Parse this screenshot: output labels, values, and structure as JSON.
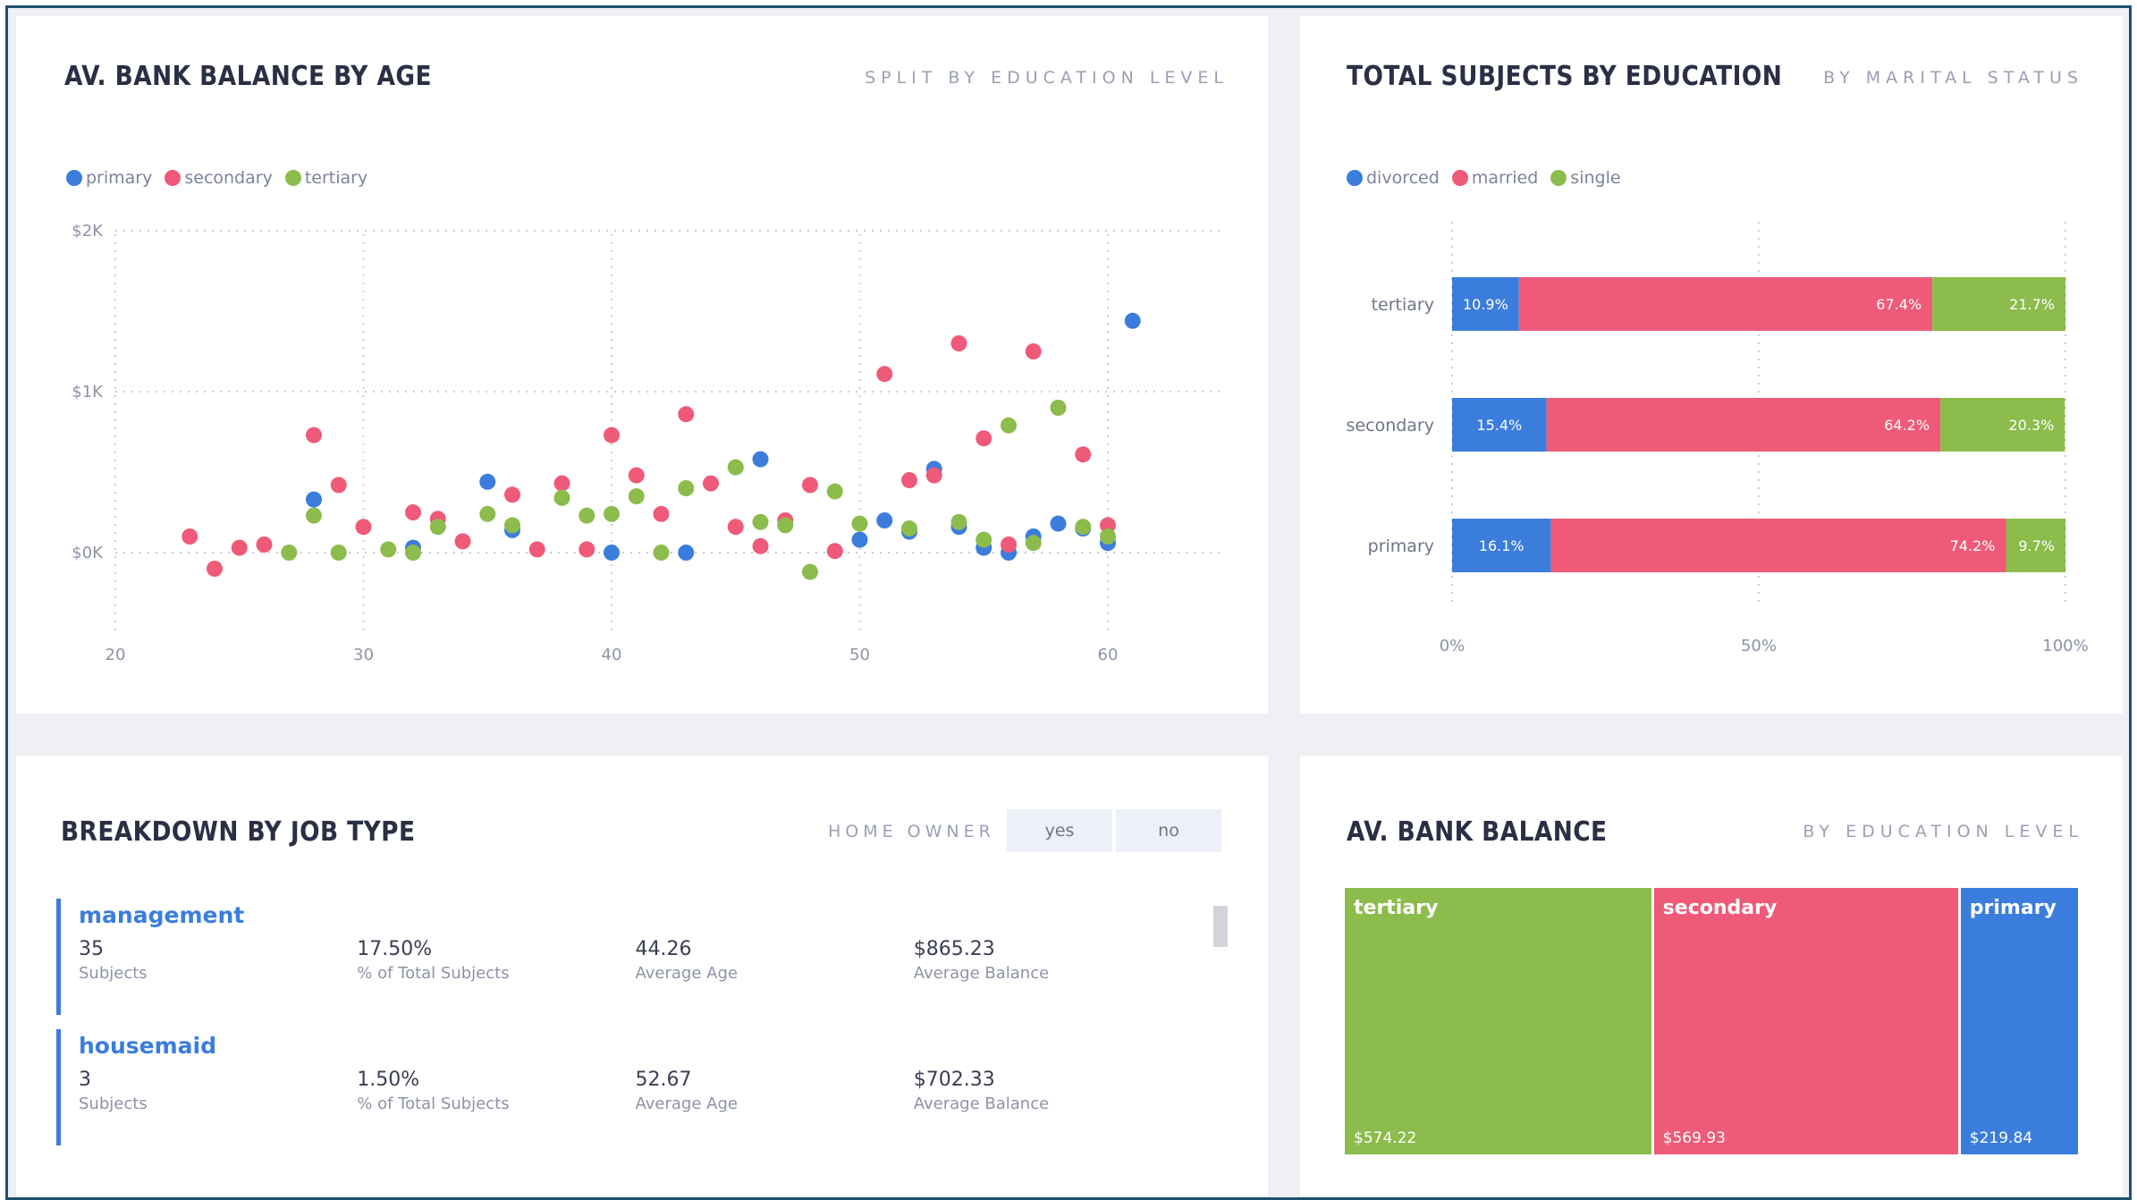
{
  "colors": {
    "primary": "#3b7ddd",
    "secondary": "#ef5a78",
    "tertiary": "#8cbc4c",
    "divorced": "#3b7ddd",
    "married": "#ef5a78",
    "single": "#8cbc4c",
    "grid": "#c9ccd4",
    "axis_text": "#8d93a6"
  },
  "panels": {
    "scatter": {
      "title": "AV. BANK BALANCE BY AGE",
      "subtitle": "SPLIT BY EDUCATION LEVEL"
    },
    "stacked": {
      "title": "TOTAL SUBJECTS BY EDUCATION",
      "subtitle": "BY MARITAL STATUS"
    },
    "jobs": {
      "title": "BREAKDOWN BY JOB TYPE",
      "filter_label": "HOME OWNER",
      "filter_yes": "yes",
      "filter_no": "no"
    },
    "treemap": {
      "title": "AV. BANK BALANCE",
      "subtitle": "BY EDUCATION LEVEL"
    }
  },
  "jobs": [
    {
      "name": "management",
      "subjects": "35",
      "subjects_label": "Subjects",
      "pct": "17.50%",
      "pct_label": "% of Total Subjects",
      "age": "44.26",
      "age_label": "Average Age",
      "balance": "$865.23",
      "balance_label": "Average Balance"
    },
    {
      "name": "housemaid",
      "subjects": "3",
      "subjects_label": "Subjects",
      "pct": "1.50%",
      "pct_label": "% of Total Subjects",
      "age": "52.67",
      "age_label": "Average Age",
      "balance": "$702.33",
      "balance_label": "Average Balance"
    }
  ],
  "chart_data": [
    {
      "type": "scatter",
      "title": "AV. BANK BALANCE BY AGE",
      "subtitle": "SPLIT BY EDUCATION LEVEL",
      "xlabel": "",
      "ylabel": "",
      "xlim": [
        20,
        65
      ],
      "ylim": [
        -400,
        2000
      ],
      "x_ticks": [
        20,
        30,
        40,
        50,
        60
      ],
      "y_ticks": [
        0,
        1000,
        2000
      ],
      "y_tick_labels": [
        "$0K",
        "$1K",
        "$2K"
      ],
      "legend": [
        "primary",
        "secondary",
        "tertiary"
      ],
      "series": [
        {
          "name": "primary",
          "points": [
            [
              28,
              330
            ],
            [
              32,
              30
            ],
            [
              35,
              440
            ],
            [
              36,
              140
            ],
            [
              40,
              0
            ],
            [
              43,
              0
            ],
            [
              46,
              580
            ],
            [
              50,
              80
            ],
            [
              51,
              200
            ],
            [
              52,
              130
            ],
            [
              53,
              520
            ],
            [
              54,
              160
            ],
            [
              55,
              30
            ],
            [
              56,
              0
            ],
            [
              57,
              100
            ],
            [
              58,
              180
            ],
            [
              59,
              150
            ],
            [
              60,
              60
            ],
            [
              61,
              1440
            ]
          ]
        },
        {
          "name": "secondary",
          "points": [
            [
              23,
              100
            ],
            [
              24,
              -100
            ],
            [
              25,
              30
            ],
            [
              26,
              50
            ],
            [
              28,
              730
            ],
            [
              29,
              420
            ],
            [
              30,
              160
            ],
            [
              32,
              250
            ],
            [
              33,
              210
            ],
            [
              34,
              70
            ],
            [
              36,
              360
            ],
            [
              37,
              20
            ],
            [
              38,
              430
            ],
            [
              39,
              20
            ],
            [
              40,
              730
            ],
            [
              41,
              480
            ],
            [
              42,
              240
            ],
            [
              43,
              860
            ],
            [
              44,
              430
            ],
            [
              45,
              160
            ],
            [
              46,
              40
            ],
            [
              47,
              200
            ],
            [
              48,
              420
            ],
            [
              49,
              10
            ],
            [
              51,
              1110
            ],
            [
              52,
              450
            ],
            [
              53,
              480
            ],
            [
              54,
              1300
            ],
            [
              55,
              710
            ],
            [
              56,
              50
            ],
            [
              57,
              1250
            ],
            [
              59,
              610
            ],
            [
              60,
              170
            ]
          ]
        },
        {
          "name": "tertiary",
          "points": [
            [
              27,
              0
            ],
            [
              28,
              230
            ],
            [
              29,
              0
            ],
            [
              31,
              20
            ],
            [
              32,
              0
            ],
            [
              33,
              160
            ],
            [
              35,
              240
            ],
            [
              36,
              170
            ],
            [
              38,
              340
            ],
            [
              39,
              230
            ],
            [
              40,
              240
            ],
            [
              41,
              350
            ],
            [
              42,
              0
            ],
            [
              43,
              400
            ],
            [
              45,
              530
            ],
            [
              46,
              190
            ],
            [
              47,
              170
            ],
            [
              48,
              -120
            ],
            [
              49,
              380
            ],
            [
              50,
              180
            ],
            [
              52,
              150
            ],
            [
              54,
              190
            ],
            [
              55,
              80
            ],
            [
              56,
              790
            ],
            [
              57,
              60
            ],
            [
              58,
              900
            ],
            [
              59,
              160
            ],
            [
              60,
              100
            ]
          ]
        }
      ]
    },
    {
      "type": "bar",
      "orientation": "horizontal-stacked-100",
      "title": "TOTAL SUBJECTS BY EDUCATION",
      "subtitle": "BY MARITAL STATUS",
      "categories": [
        "tertiary",
        "secondary",
        "primary"
      ],
      "x_ticks": [
        "0%",
        "50%",
        "100%"
      ],
      "legend": [
        "divorced",
        "married",
        "single"
      ],
      "series": [
        {
          "name": "divorced",
          "values": [
            10.9,
            15.4,
            16.1
          ],
          "labels": [
            "10.9%",
            "15.4%",
            "16.1%"
          ]
        },
        {
          "name": "married",
          "values": [
            67.4,
            64.2,
            74.2
          ],
          "labels": [
            "67.4%",
            "64.2%",
            "74.2%"
          ]
        },
        {
          "name": "single",
          "values": [
            21.7,
            20.3,
            9.7
          ],
          "labels": [
            "21.7%",
            "20.3%",
            "9.7%"
          ]
        }
      ]
    },
    {
      "type": "treemap",
      "title": "AV. BANK BALANCE",
      "subtitle": "BY EDUCATION LEVEL",
      "categories": [
        "tertiary",
        "secondary",
        "primary"
      ],
      "values": [
        574.22,
        569.93,
        219.84
      ],
      "value_labels": [
        "$574.22",
        "$569.93",
        "$219.84"
      ]
    }
  ]
}
